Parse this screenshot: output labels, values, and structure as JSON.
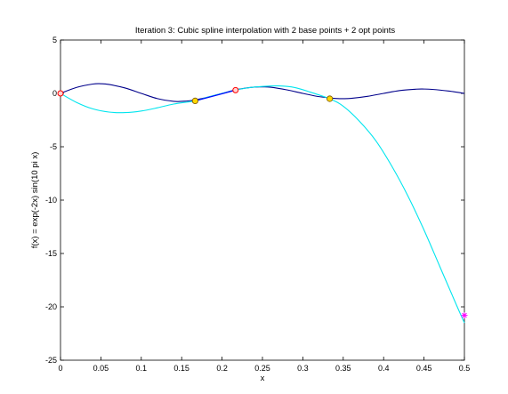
{
  "chart_data": {
    "type": "line",
    "title": "Iteration 3: Cubic spline interpolation with 2 base points + 2 opt points",
    "xlabel": "x",
    "ylabel": "f(x) = exp(-2x) sin(10 pi x)",
    "xlim": [
      0,
      0.5
    ],
    "ylim": [
      -25,
      5
    ],
    "xticks": [
      "0",
      "0.05",
      "0.1",
      "0.15",
      "0.2",
      "0.25",
      "0.3",
      "0.35",
      "0.4",
      "0.45",
      "0.5"
    ],
    "yticks": [
      "5",
      "0",
      "-5",
      "-10",
      "-15",
      "-20",
      "-25"
    ],
    "grid": false,
    "colors": {
      "function": "#00008b",
      "spline": "#00e5ee",
      "segment": "#0000ff",
      "opt_points": "#ffd700",
      "opt_points_edge": "#7a5500",
      "base_points": "#ff0000",
      "star": "#ff00ff"
    },
    "series": [
      {
        "role": "function",
        "x": [
          0,
          0.02,
          0.04,
          0.05,
          0.06,
          0.08,
          0.1,
          0.12,
          0.14,
          0.15,
          0.16,
          0.18,
          0.2,
          0.22,
          0.24,
          0.25,
          0.26,
          0.28,
          0.3,
          0.32,
          0.34,
          0.35,
          0.36,
          0.38,
          0.4,
          0.42,
          0.44,
          0.45,
          0.46,
          0.48,
          0.5
        ],
        "y": [
          0,
          0.565,
          0.875,
          0.905,
          0.84,
          0.505,
          0,
          -0.491,
          -0.745,
          -0.741,
          -0.689,
          -0.395,
          0,
          0.381,
          0.59,
          0.607,
          0.577,
          0.335,
          0,
          -0.302,
          -0.473,
          -0.497,
          -0.467,
          -0.278,
          0,
          0.268,
          0.395,
          0.407,
          0.376,
          0.226,
          0
        ]
      },
      {
        "role": "spline",
        "x": [
          0,
          0.02,
          0.04,
          0.06,
          0.08,
          0.1,
          0.12,
          0.14,
          0.1667,
          0.18,
          0.2,
          0.2167,
          0.23,
          0.25,
          0.27,
          0.29,
          0.31,
          0.333,
          0.35,
          0.37,
          0.39,
          0.41,
          0.43,
          0.45,
          0.47,
          0.49,
          0.5
        ],
        "y": [
          0,
          -0.85,
          -1.45,
          -1.75,
          -1.8,
          -1.65,
          -1.35,
          -1.0,
          -0.7,
          -0.4,
          0,
          0.3,
          0.5,
          0.65,
          0.7,
          0.55,
          0.1,
          -0.5,
          -1.2,
          -2.6,
          -4.4,
          -6.8,
          -9.6,
          -12.8,
          -16.3,
          -19.8,
          -21.5
        ]
      },
      {
        "role": "segment",
        "x": [
          0.1667,
          0.2167
        ],
        "y": [
          -0.7,
          0.3
        ]
      }
    ],
    "points": {
      "base": [
        {
          "x": 0,
          "y": 0
        },
        {
          "x": 0.2167,
          "y": 0.3
        }
      ],
      "opt": [
        {
          "x": 0.1667,
          "y": -0.7
        },
        {
          "x": 0.3333,
          "y": -0.5
        }
      ],
      "star": [
        {
          "x": 0.5,
          "y": -20.8
        }
      ]
    }
  }
}
